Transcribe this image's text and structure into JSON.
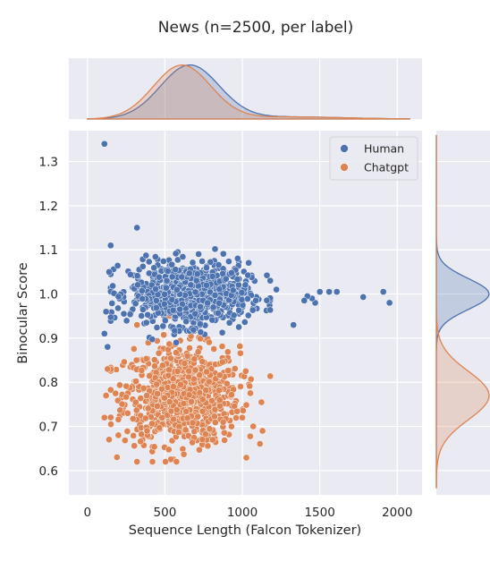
{
  "chart_data": {
    "type": "scatter",
    "title": "News (n=2500, per label)",
    "xlabel": "Sequence Length (Falcon Tokenizer)",
    "ylabel": "Binocular Score",
    "xlim": [
      -120,
      2160
    ],
    "ylim": [
      0.545,
      1.37
    ],
    "xticks": [
      0,
      500,
      1000,
      1500,
      2000
    ],
    "yticks": [
      0.6,
      0.7,
      0.8,
      0.9,
      1.0,
      1.1,
      1.2,
      1.3
    ],
    "grid": true,
    "legend_position": "top-right",
    "marginals": {
      "top": "kde of sequence length",
      "right": "kde of binocular score"
    },
    "series": [
      {
        "name": "Human",
        "color": "#4c72b0",
        "n": 2500,
        "x_mean": 660,
        "x_sd": 190,
        "y_mean": 1.0,
        "y_sd": 0.035,
        "points": [
          [
            110,
            1.34
          ],
          [
            320,
            1.15
          ],
          [
            1950,
            0.98
          ],
          [
            1910,
            1.005
          ],
          [
            1780,
            0.993
          ],
          [
            1610,
            1.005
          ],
          [
            1560,
            1.005
          ],
          [
            1500,
            1.005
          ],
          [
            1470,
            0.98
          ],
          [
            1450,
            0.99
          ],
          [
            1420,
            0.995
          ],
          [
            1400,
            0.985
          ],
          [
            1330,
            0.93
          ],
          [
            1220,
            1.01
          ],
          [
            1180,
            1.03
          ],
          [
            110,
            0.91
          ],
          [
            120,
            0.96
          ],
          [
            130,
            0.88
          ],
          [
            140,
            1.05
          ],
          [
            150,
            1.11
          ]
        ]
      },
      {
        "name": "Chatgpt",
        "color": "#dd8452",
        "n": 2500,
        "x_mean": 610,
        "x_sd": 185,
        "y_mean": 0.77,
        "y_sd": 0.055,
        "points": [
          [
            320,
            0.62
          ],
          [
            1130,
            0.69
          ],
          [
            1070,
            0.7
          ],
          [
            1000,
            0.72
          ],
          [
            120,
            0.77
          ],
          [
            110,
            0.72
          ],
          [
            130,
            0.83
          ],
          [
            140,
            0.67
          ],
          [
            380,
            0.97
          ],
          [
            320,
            0.93
          ],
          [
            200,
            0.68
          ]
        ]
      }
    ]
  },
  "legend": {
    "human": "Human",
    "chatgpt": "Chatgpt"
  }
}
